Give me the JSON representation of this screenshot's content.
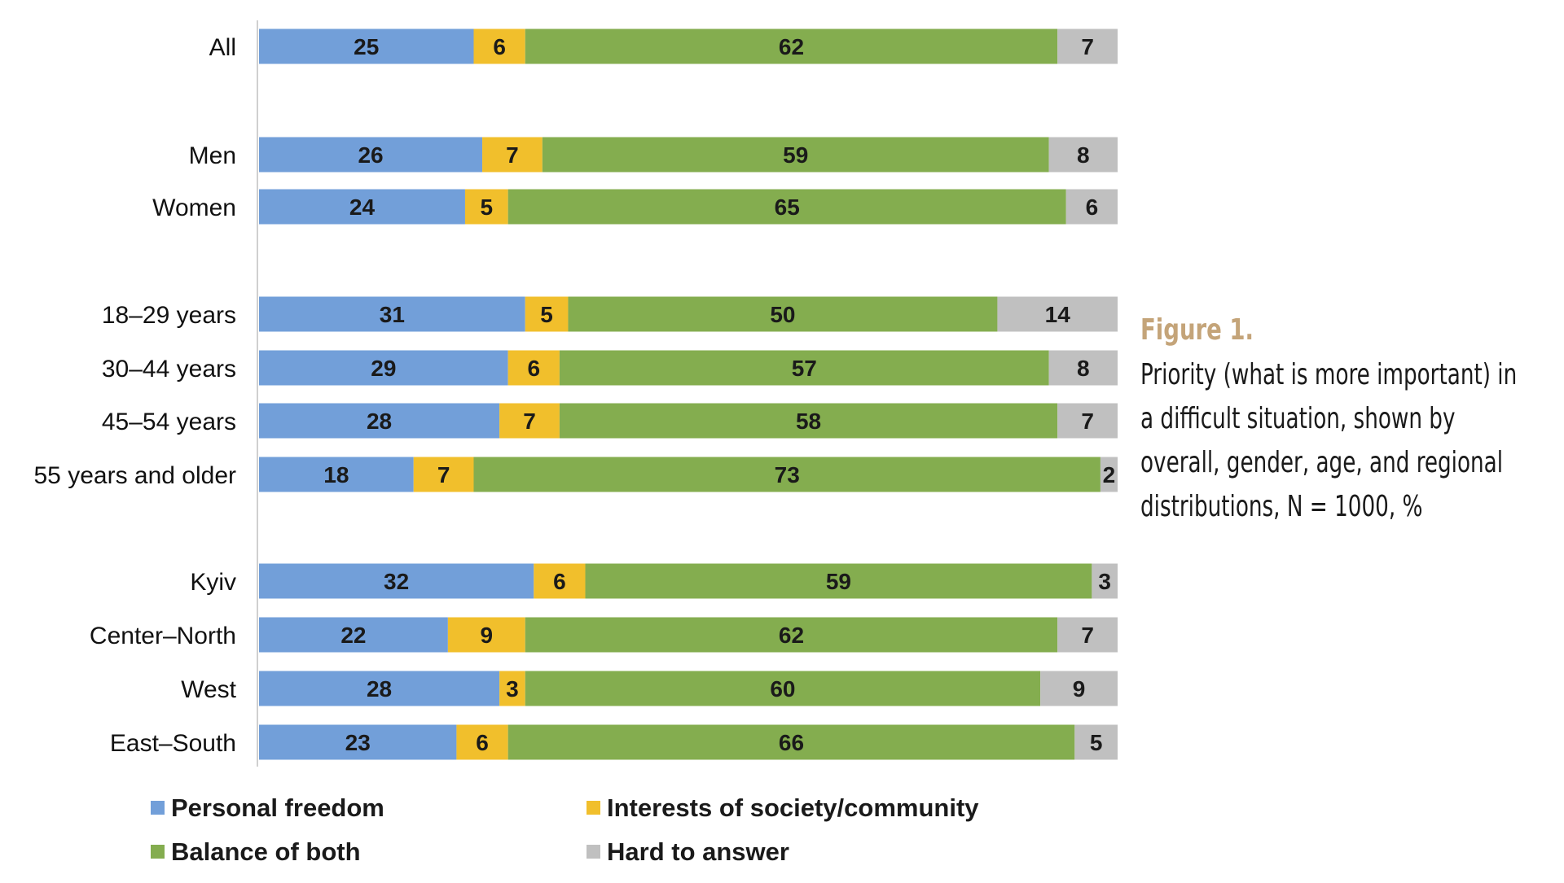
{
  "chart_data": {
    "type": "bar",
    "orientation": "horizontal",
    "stacked": true,
    "categories": [
      "All",
      "Men",
      "Women",
      "18–29 years",
      "30–44 years",
      "45–54 years",
      "55 years and older",
      "Kyiv",
      "Center–North",
      "West",
      "East–South"
    ],
    "groups": [
      [
        "All"
      ],
      [
        "Men",
        "Women"
      ],
      [
        "18–29 years",
        "30–44 years",
        "45–54 years",
        "55 years and older"
      ],
      [
        "Kyiv",
        "Center–North",
        "West",
        "East–South"
      ]
    ],
    "series": [
      {
        "name": "Personal freedom",
        "color": "#729fd9",
        "values": [
          25,
          26,
          24,
          31,
          29,
          28,
          18,
          32,
          22,
          28,
          23
        ]
      },
      {
        "name": "Interests of society/community",
        "color": "#f1bf2c",
        "values": [
          6,
          7,
          5,
          5,
          6,
          7,
          7,
          6,
          9,
          3,
          6
        ]
      },
      {
        "name": "Balance of both",
        "color": "#84ad4f",
        "values": [
          62,
          59,
          65,
          50,
          57,
          58,
          73,
          59,
          62,
          60,
          66
        ]
      },
      {
        "name": "Hard to answer",
        "color": "#c0c0c0",
        "values": [
          7,
          8,
          6,
          14,
          8,
          7,
          2,
          3,
          7,
          9,
          5
        ]
      }
    ],
    "xlim": [
      0,
      100
    ],
    "legend_position": "bottom-left",
    "grid": false
  },
  "caption": {
    "figure_label": "Figure 1.",
    "text": "Priority (what is more important) in a difficult situation, shown by overall, gender, age, and regional distributions, N = 1000, %"
  }
}
